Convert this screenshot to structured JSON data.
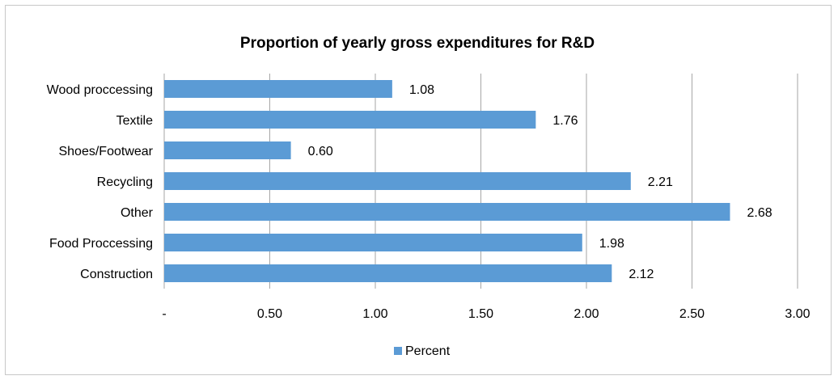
{
  "chart_data": {
    "type": "bar",
    "orientation": "horizontal",
    "title": "Proportion of yearly gross expenditures for R&D",
    "categories": [
      "Wood proccessing",
      "Textile",
      "Shoes/Footwear",
      "Recycling",
      "Other",
      "Food Proccessing",
      "Construction"
    ],
    "series": [
      {
        "name": "Percent",
        "values": [
          1.08,
          1.76,
          0.6,
          2.21,
          2.68,
          1.98,
          2.12
        ],
        "value_labels": [
          "1.08",
          "1.76",
          "0.60",
          "2.21",
          "2.68",
          "1.98",
          "2.12"
        ],
        "color": "#5b9bd5"
      }
    ],
    "xlim": [
      0,
      3
    ],
    "x_ticks": [
      0,
      0.5,
      1.0,
      1.5,
      2.0,
      2.5,
      3.0
    ],
    "x_tick_labels": [
      "-",
      "0.50",
      "1.00",
      "1.50",
      "2.00",
      "2.50",
      "3.00"
    ],
    "xlabel": "",
    "ylabel": "",
    "grid": "vertical",
    "legend_position": "bottom"
  },
  "colors": {
    "gridline": "#a6a6a6",
    "frame": "#c8c8c8",
    "text": "#000000"
  }
}
